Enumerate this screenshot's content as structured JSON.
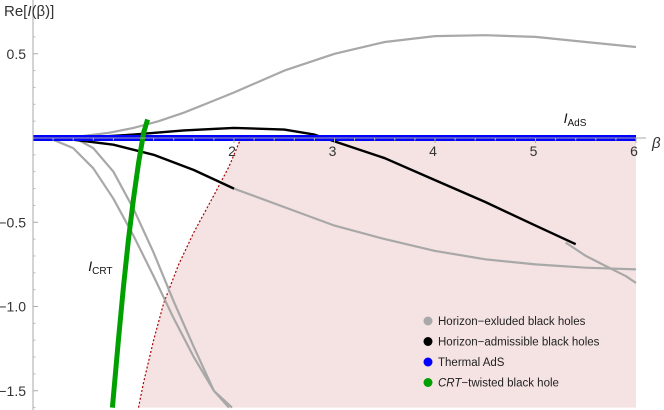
{
  "chart_data": {
    "type": "line",
    "xlabel": "β",
    "ylabel_prefix": "Re[",
    "ylabel_italic": "I",
    "ylabel_suffix": "(β)]",
    "xlim": [
      0,
      6
    ],
    "ylim": [
      -1.6,
      0.65
    ],
    "x_ticks": [
      2,
      3,
      4,
      5,
      6
    ],
    "y_ticks": [
      0.5,
      -0.5,
      -1.0,
      -1.5
    ],
    "x_tick_labels": [
      "2",
      "3",
      "4",
      "5",
      "6"
    ],
    "y_tick_labels": [
      "0.5",
      "-0.5",
      "-1.0",
      "-1.5"
    ],
    "grid": false,
    "legend_position": "bottom-right",
    "colors": {
      "excluded": "#a8a8a8",
      "admissible": "#000000",
      "ads": "#0000ff",
      "crt": "#00a000",
      "shade": "#f5e3e3",
      "boundary": "#aa0000"
    },
    "legend": [
      {
        "key": "excluded",
        "label": "Horizon−exluded black holes",
        "italic_part": ""
      },
      {
        "key": "admissible",
        "label": "Horizon−admissible black holes",
        "italic_part": ""
      },
      {
        "key": "ads",
        "label": " Thermal AdS",
        "italic_part": ""
      },
      {
        "key": "crt",
        "label": "−twisted black hole",
        "italic_part": "CRT"
      }
    ],
    "annotations": [
      {
        "main": "I",
        "sub": "AdS",
        "x": 5.28,
        "y": 0.09
      },
      {
        "main": "I",
        "sub": "CRT",
        "x": 0.55,
        "y": -0.79
      }
    ],
    "series": [
      {
        "key": "excluded",
        "x": [
          0,
          0.25,
          0.5,
          0.75,
          1.0,
          1.25,
          1.5,
          1.75,
          2.0,
          2.5,
          3.0,
          3.5,
          4.0,
          4.5,
          5.0,
          5.5,
          6.0
        ],
        "y": [
          0,
          0.003,
          0.012,
          0.03,
          0.06,
          0.1,
          0.15,
          0.21,
          0.27,
          0.4,
          0.5,
          0.57,
          0.605,
          0.61,
          0.6,
          0.57,
          0.54
        ]
      },
      {
        "key": "excluded",
        "x": [
          0,
          0.2,
          0.4,
          0.6,
          0.8,
          1.0,
          1.2,
          1.4,
          1.6,
          1.8,
          1.95
        ],
        "y": [
          0,
          0.01,
          0.005,
          -0.06,
          -0.2,
          -0.42,
          -0.68,
          -0.97,
          -1.24,
          -1.5,
          -1.6
        ]
      },
      {
        "key": "excluded",
        "x": [
          0,
          0.2,
          0.4,
          0.6,
          0.8,
          1.0,
          1.2,
          1.4,
          1.6,
          1.8,
          1.98
        ],
        "y": [
          0,
          -0.01,
          -0.06,
          -0.18,
          -0.36,
          -0.58,
          -0.82,
          -1.07,
          -1.3,
          -1.5,
          -1.6
        ]
      },
      {
        "key": "excluded",
        "x": [
          2.0,
          2.5,
          3.0,
          3.5,
          4.0,
          4.5,
          5.0,
          5.5,
          6.0
        ],
        "y": [
          -0.3,
          -0.41,
          -0.52,
          -0.6,
          -0.67,
          -0.72,
          -0.75,
          -0.77,
          -0.78
        ]
      },
      {
        "key": "excluded",
        "x": [
          5.3,
          5.5,
          5.7,
          5.9,
          6.0
        ],
        "y": [
          -0.62,
          -0.7,
          -0.76,
          -0.82,
          -0.86
        ]
      },
      {
        "key": "admissible",
        "x": [
          0,
          0.5,
          1.0,
          1.5,
          2.0,
          2.5,
          2.8,
          3.0,
          3.5,
          4.0,
          4.5,
          5.0,
          5.4
        ],
        "y": [
          0,
          0.002,
          0.02,
          0.045,
          0.06,
          0.05,
          0.02,
          -0.02,
          -0.12,
          -0.25,
          -0.38,
          -0.52,
          -0.63
        ]
      },
      {
        "key": "admissible",
        "x": [
          0,
          0.4,
          0.8,
          1.2,
          1.6,
          2.0
        ],
        "y": [
          0,
          -0.01,
          -0.04,
          -0.1,
          -0.19,
          -0.3
        ]
      },
      {
        "key": "ads",
        "x": [
          0,
          6
        ],
        "y": [
          0,
          0
        ]
      },
      {
        "key": "crt",
        "x": [
          0.79,
          0.85,
          0.9,
          0.95,
          1.0,
          1.05,
          1.1,
          1.14
        ],
        "y": [
          -1.6,
          -1.2,
          -0.88,
          -0.6,
          -0.36,
          -0.15,
          0.03,
          0.11
        ]
      }
    ],
    "shaded_region": {
      "boundary_x": [
        1.05,
        1.1,
        1.2,
        1.3,
        1.45,
        1.6,
        1.8,
        1.95,
        2.07
      ],
      "boundary_y": [
        -1.6,
        -1.45,
        -1.2,
        -0.98,
        -0.75,
        -0.56,
        -0.34,
        -0.17,
        0
      ],
      "to_x": 6
    }
  }
}
